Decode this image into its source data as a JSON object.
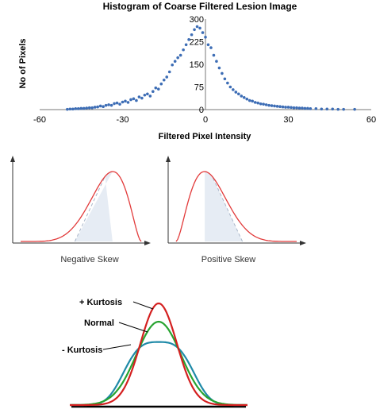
{
  "chart_data": [
    {
      "type": "scatter",
      "title": "Histogram of Coarse Filtered Lesion Image",
      "xlabel": "Filtered Pixel Intensity",
      "ylabel": "No of Pixels",
      "xlim": [
        -60,
        60
      ],
      "ylim": [
        0,
        300
      ],
      "x_ticks": [
        "-60",
        "-30",
        "0",
        "30",
        "60"
      ],
      "y_ticks": [
        "0",
        "75",
        "150",
        "225",
        "300"
      ],
      "marker_color": "#3d6db5",
      "points": [
        [
          -50,
          1
        ],
        [
          -49,
          2
        ],
        [
          -48,
          2
        ],
        [
          -47,
          3
        ],
        [
          -46,
          3
        ],
        [
          -45,
          4
        ],
        [
          -44,
          4
        ],
        [
          -43,
          5
        ],
        [
          -42,
          6
        ],
        [
          -41,
          6
        ],
        [
          -40,
          8
        ],
        [
          -39,
          9
        ],
        [
          -38,
          12
        ],
        [
          -37,
          10
        ],
        [
          -36,
          14
        ],
        [
          -35,
          16
        ],
        [
          -34,
          14
        ],
        [
          -33,
          20
        ],
        [
          -32,
          22
        ],
        [
          -31,
          18
        ],
        [
          -30,
          25
        ],
        [
          -29,
          28
        ],
        [
          -28,
          24
        ],
        [
          -27,
          33
        ],
        [
          -26,
          36
        ],
        [
          -25,
          30
        ],
        [
          -24,
          42
        ],
        [
          -23,
          38
        ],
        [
          -22,
          48
        ],
        [
          -21,
          52
        ],
        [
          -20,
          45
        ],
        [
          -19,
          60
        ],
        [
          -18,
          72
        ],
        [
          -17,
          68
        ],
        [
          -16,
          85
        ],
        [
          -15,
          98
        ],
        [
          -14,
          108
        ],
        [
          -13,
          125
        ],
        [
          -12,
          148
        ],
        [
          -11,
          160
        ],
        [
          -10,
          172
        ],
        [
          -9,
          180
        ],
        [
          -8,
          198
        ],
        [
          -7,
          215
        ],
        [
          -6,
          232
        ],
        [
          -5,
          248
        ],
        [
          -4,
          265
        ],
        [
          -3,
          275
        ],
        [
          -2,
          270
        ],
        [
          -1,
          255
        ],
        [
          0,
          240
        ],
        [
          1,
          215
        ],
        [
          2,
          205
        ],
        [
          3,
          180
        ],
        [
          4,
          160
        ],
        [
          5,
          138
        ],
        [
          6,
          120
        ],
        [
          7,
          102
        ],
        [
          8,
          88
        ],
        [
          9,
          75
        ],
        [
          10,
          66
        ],
        [
          11,
          58
        ],
        [
          12,
          52
        ],
        [
          13,
          45
        ],
        [
          14,
          40
        ],
        [
          15,
          35
        ],
        [
          16,
          30
        ],
        [
          17,
          28
        ],
        [
          18,
          24
        ],
        [
          19,
          22
        ],
        [
          20,
          19
        ],
        [
          21,
          18
        ],
        [
          22,
          16
        ],
        [
          23,
          14
        ],
        [
          24,
          13
        ],
        [
          25,
          12
        ],
        [
          26,
          11
        ],
        [
          27,
          10
        ],
        [
          28,
          9
        ],
        [
          29,
          8
        ],
        [
          30,
          8
        ],
        [
          31,
          7
        ],
        [
          32,
          6
        ],
        [
          33,
          6
        ],
        [
          34,
          5
        ],
        [
          35,
          5
        ],
        [
          36,
          4
        ],
        [
          37,
          4
        ],
        [
          38,
          3
        ],
        [
          40,
          3
        ],
        [
          42,
          2
        ],
        [
          44,
          2
        ],
        [
          46,
          2
        ],
        [
          48,
          1
        ],
        [
          50,
          1
        ],
        [
          54,
          1
        ]
      ]
    },
    {
      "type": "line",
      "title": "",
      "caption": "Negative Skew",
      "curve_color": "#e23b3b",
      "shade_color": "#e6ecf4",
      "median_line_color": "#a9b6c9"
    },
    {
      "type": "line",
      "title": "",
      "caption": "Positive Skew",
      "curve_color": "#e23b3b",
      "shade_color": "#e6ecf4",
      "median_line_color": "#a9b6c9"
    },
    {
      "type": "line",
      "title": "",
      "series": [
        {
          "name": "+ Kurtosis",
          "color": "#d42020",
          "sigma": 0.82
        },
        {
          "name": "Normal",
          "color": "#27a330",
          "sigma": 1.0
        },
        {
          "name": "- Kurtosis",
          "color": "#1f8aa8",
          "sigma": 1.22
        }
      ],
      "baseline_color": "#000000"
    }
  ]
}
